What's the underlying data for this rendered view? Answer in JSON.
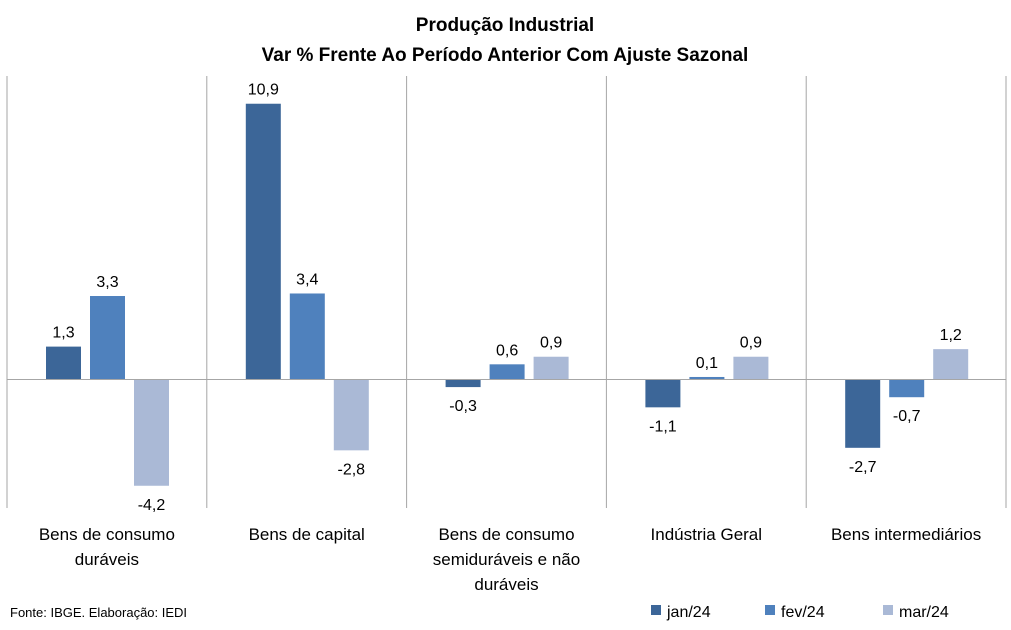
{
  "chart_data": {
    "type": "bar",
    "title": "Produção Industrial",
    "subtitle": "Var % Frente Ao Período Anterior Com Ajuste Sazonal",
    "categories": [
      [
        "Bens de consumo",
        "duráveis"
      ],
      [
        "Bens de capital"
      ],
      [
        "Bens de consumo",
        "semiduráveis e não",
        "duráveis"
      ],
      [
        "Indústria Geral"
      ],
      [
        "Bens intermediários"
      ]
    ],
    "series": [
      {
        "name": "jan/24",
        "color": "#3c6698",
        "values": [
          1.3,
          10.9,
          -0.3,
          -1.1,
          -2.7
        ],
        "labels": [
          "1,3",
          "10,9",
          "-0,3",
          "-1,1",
          "-2,7"
        ]
      },
      {
        "name": "fev/24",
        "color": "#4f81bd",
        "values": [
          3.3,
          3.4,
          0.6,
          0.1,
          -0.7
        ],
        "labels": [
          "3,3",
          "3,4",
          "0,6",
          "0,1",
          "-0,7"
        ]
      },
      {
        "name": "mar/24",
        "color": "#aab9d6",
        "values": [
          -4.2,
          -2.8,
          0.9,
          0.9,
          1.2
        ],
        "labels": [
          "-4,2",
          "-2,8",
          "0,9",
          "0,9",
          "1,2"
        ]
      }
    ],
    "legend_position": "bottom-right",
    "gridlines": "vertical-category-separators"
  },
  "source_note": "Fonte: IBGE. Elaboração: IEDI"
}
